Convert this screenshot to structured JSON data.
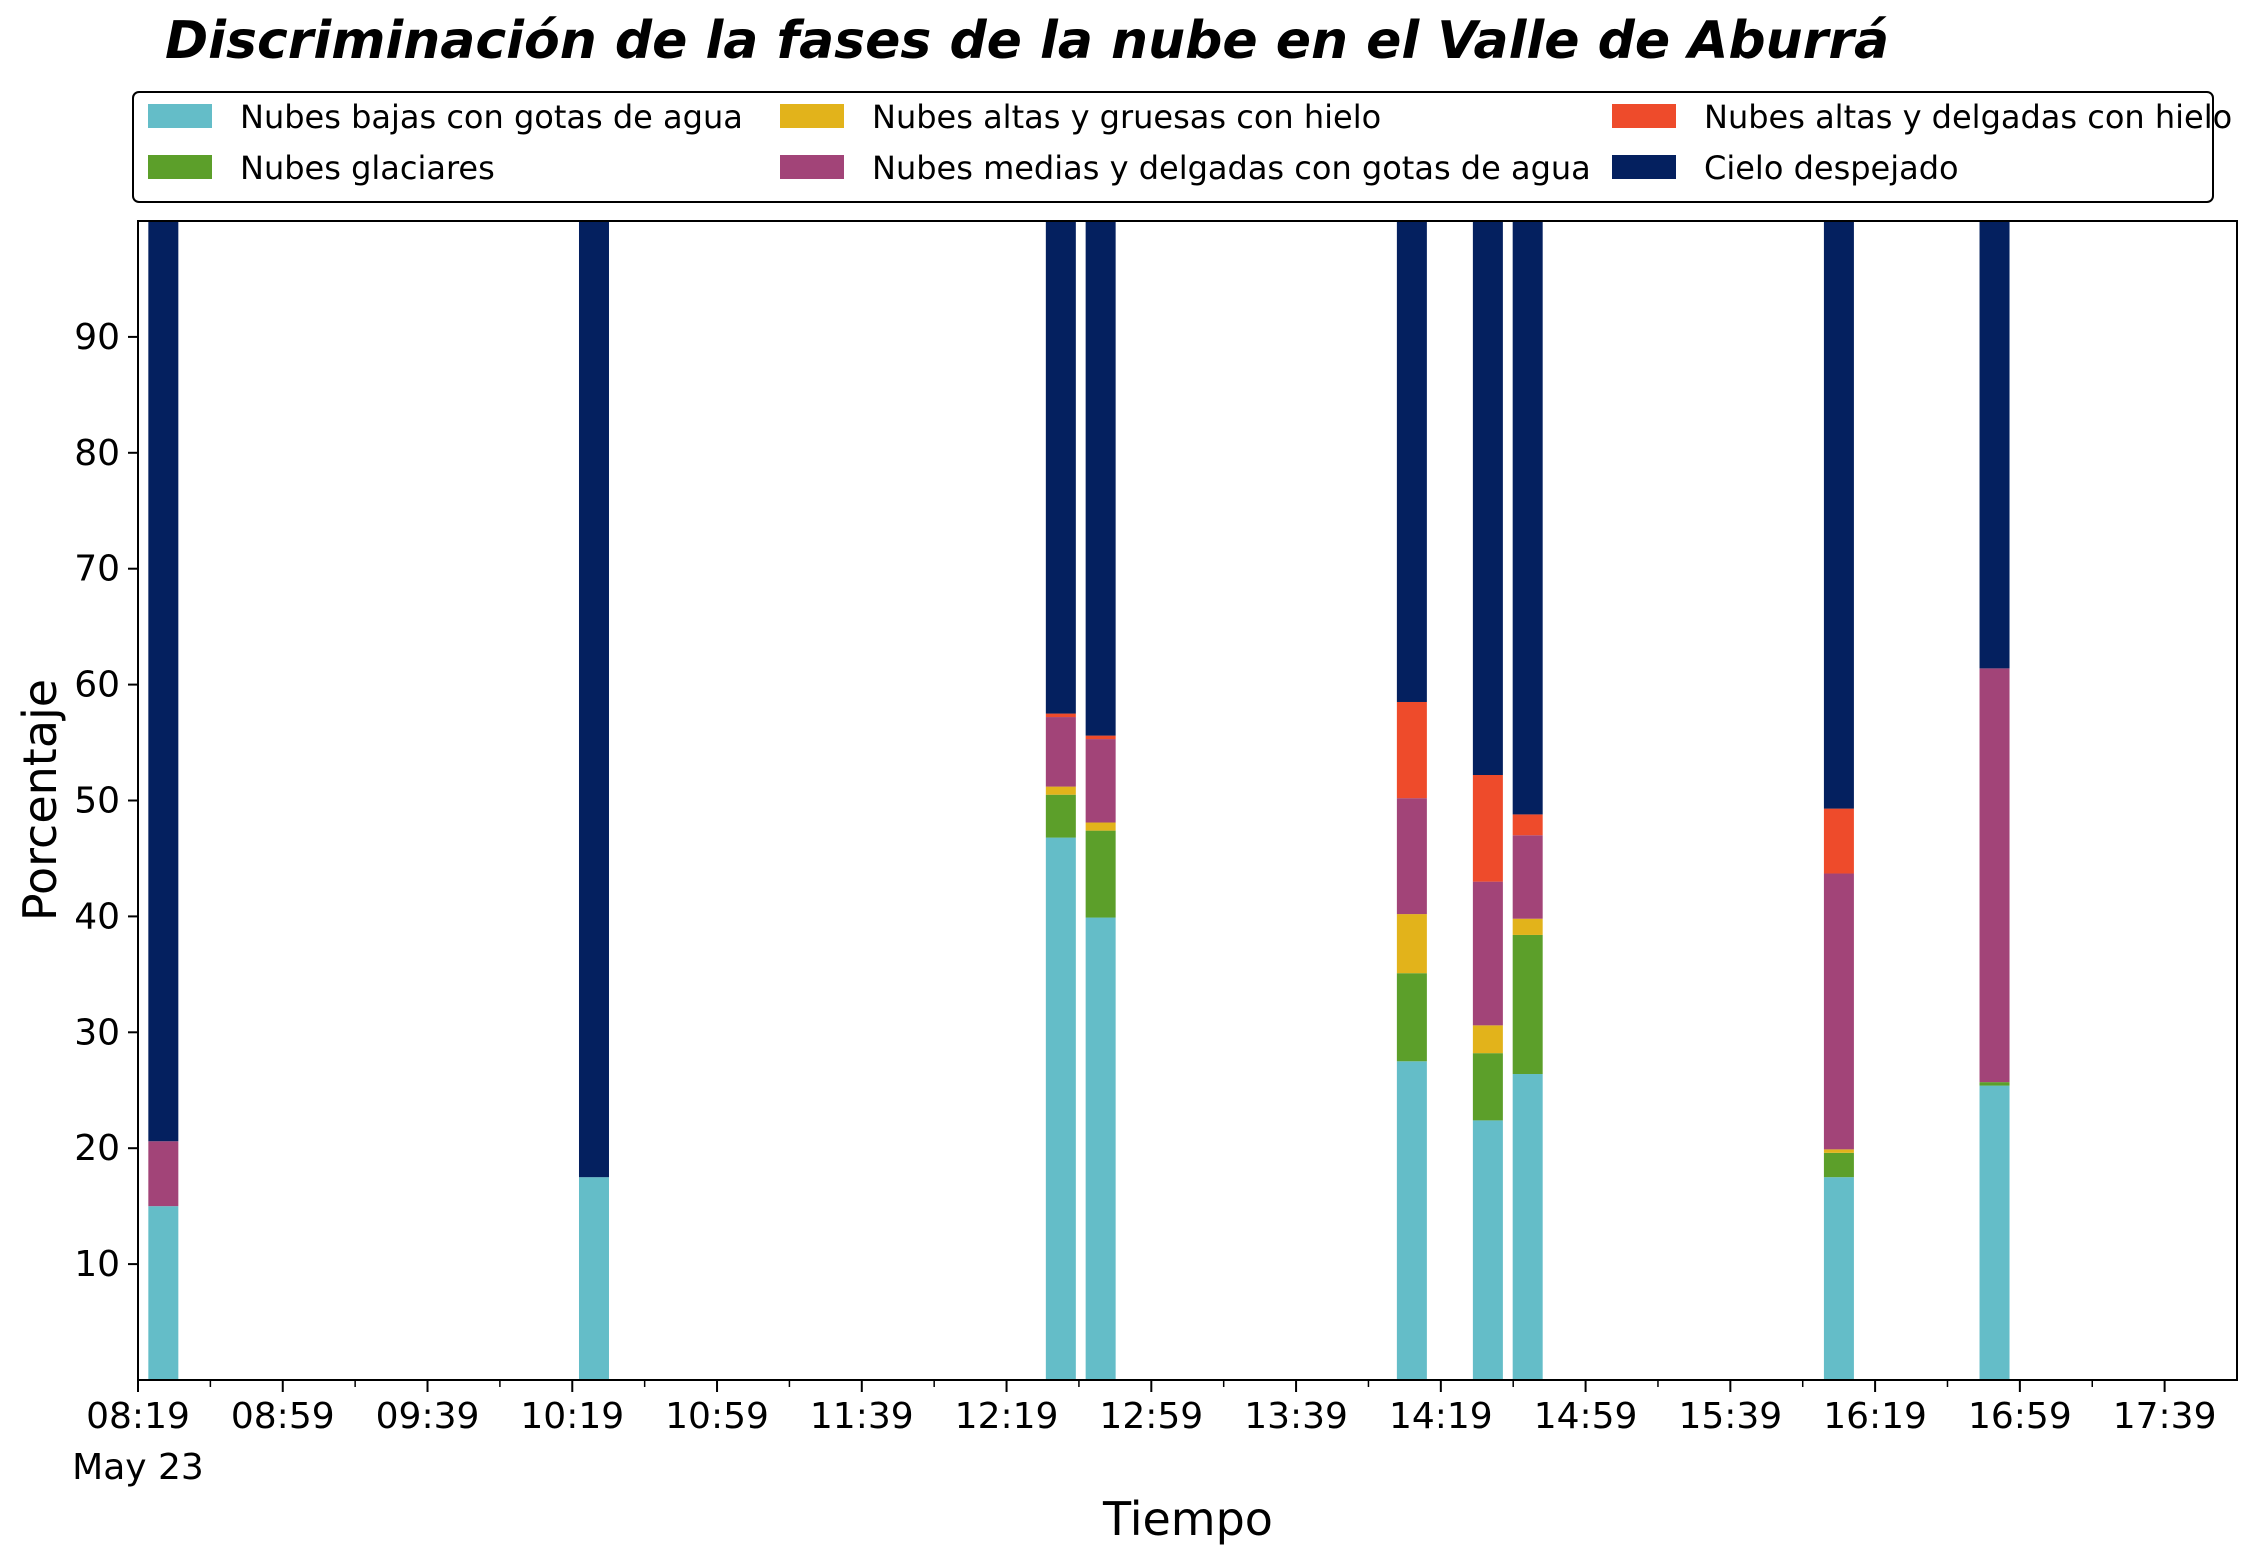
{
  "chart_data": {
    "type": "bar",
    "stacked": true,
    "title": "Discriminación de la fases de la nube en el Valle de Aburrá",
    "xlabel": "Tiempo",
    "ylabel": "Porcentaje",
    "ylim": [
      0,
      100
    ],
    "yticks": [
      10,
      20,
      30,
      40,
      50,
      60,
      70,
      80,
      90
    ],
    "xlim": [
      "08:19",
      "17:59"
    ],
    "xticks": [
      "08:19",
      "08:59",
      "09:39",
      "10:19",
      "10:59",
      "11:39",
      "12:19",
      "12:59",
      "13:39",
      "14:19",
      "14:59",
      "15:39",
      "16:19",
      "16:59",
      "17:39"
    ],
    "date_label": "May 23",
    "grid": false,
    "legend_position": "top",
    "categories": [
      "08:26",
      "10:25",
      "12:34",
      "12:45",
      "14:11",
      "14:32",
      "14:43",
      "16:09",
      "16:52"
    ],
    "series": [
      {
        "name": "Nubes bajas con gotas de agua",
        "color": "#64bdc8",
        "values": [
          15.0,
          17.5,
          46.8,
          39.9,
          27.5,
          22.4,
          26.4,
          17.5,
          25.4
        ]
      },
      {
        "name": "Nubes glaciares",
        "color": "#5c9f2a",
        "values": [
          0.0,
          0.0,
          3.7,
          7.5,
          7.6,
          5.8,
          12.0,
          2.1,
          0.3
        ]
      },
      {
        "name": "Nubes altas y gruesas con hielo",
        "color": "#e2b31b",
        "values": [
          0.0,
          0.0,
          0.7,
          0.7,
          5.1,
          2.4,
          1.4,
          0.3,
          0.0
        ]
      },
      {
        "name": "Nubes medias y delgadas con gotas de agua",
        "color": "#a24478",
        "values": [
          5.6,
          0.0,
          6.0,
          7.2,
          10.0,
          12.4,
          7.2,
          23.8,
          35.7
        ]
      },
      {
        "name": "Nubes altas y delgadas con hielo",
        "color": "#ee4b2b",
        "values": [
          0.0,
          0.0,
          0.3,
          0.3,
          8.3,
          9.2,
          1.8,
          5.6,
          0.0
        ]
      },
      {
        "name": "Cielo despejado",
        "color": "#04205f",
        "values": [
          79.4,
          82.5,
          42.5,
          44.4,
          41.5,
          47.8,
          51.2,
          50.7,
          38.6
        ]
      }
    ]
  }
}
